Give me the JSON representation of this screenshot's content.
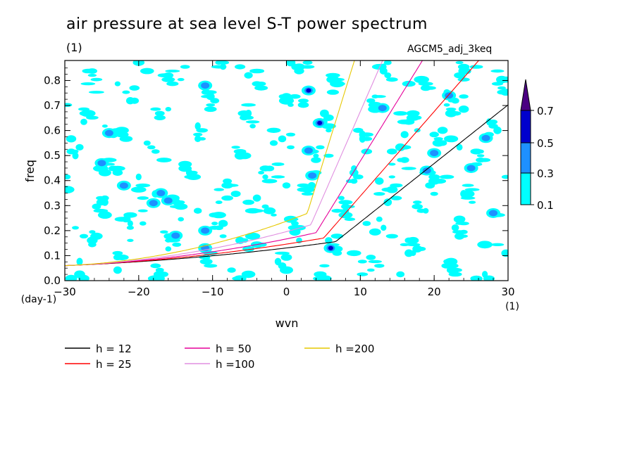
{
  "chart_data": {
    "type": "heatmap",
    "title": "air pressure at sea level S-T power spectrum",
    "subtitle": "(1)",
    "experiment": "AGCM5_adj_3keq",
    "xlabel": "wvn",
    "xunit": "(1)",
    "ylabel": "freq",
    "yunit": "(day-1)",
    "xlim": [
      -30,
      30
    ],
    "ylim": [
      0,
      0.88
    ],
    "xticks": [
      "−30",
      "−20",
      "−10",
      "0",
      "10",
      "20",
      "30"
    ],
    "xtick_values": [
      -30,
      -20,
      -10,
      0,
      10,
      20,
      30
    ],
    "yticks": [
      "0.0",
      "0.1",
      "0.2",
      "0.3",
      "0.4",
      "0.5",
      "0.6",
      "0.7",
      "0.8"
    ],
    "ytick_values": [
      0,
      0.1,
      0.2,
      0.3,
      0.4,
      0.5,
      0.6,
      0.7,
      0.8
    ],
    "colorbar": {
      "levels": [
        "0.1",
        "0.3",
        "0.5",
        "0.7"
      ],
      "level_values": [
        0.1,
        0.3,
        0.5,
        0.7
      ],
      "colors": [
        "#00ffff",
        "#1e90ff",
        "#0000cd",
        "#4b0082"
      ]
    },
    "high_spots": [
      {
        "x": 3,
        "y": 0.76,
        "level": 0.5
      },
      {
        "x": 4.5,
        "y": 0.63,
        "level": 0.5
      },
      {
        "x": 6,
        "y": 0.13,
        "level": 0.5
      },
      {
        "x": -11,
        "y": 0.78,
        "level": 0.3
      },
      {
        "x": -24,
        "y": 0.59,
        "level": 0.3
      },
      {
        "x": -25,
        "y": 0.47,
        "level": 0.3
      },
      {
        "x": -22,
        "y": 0.38,
        "level": 0.3
      },
      {
        "x": -17,
        "y": 0.35,
        "level": 0.3
      },
      {
        "x": -16,
        "y": 0.32,
        "level": 0.3
      },
      {
        "x": -18,
        "y": 0.31,
        "level": 0.3
      },
      {
        "x": -11,
        "y": 0.2,
        "level": 0.3
      },
      {
        "x": -15,
        "y": 0.18,
        "level": 0.3
      },
      {
        "x": -11,
        "y": 0.13,
        "level": 0.3
      },
      {
        "x": 3,
        "y": 0.52,
        "level": 0.3
      },
      {
        "x": 3.5,
        "y": 0.42,
        "level": 0.3
      },
      {
        "x": 22,
        "y": 0.74,
        "level": 0.3
      },
      {
        "x": 20,
        "y": 0.51,
        "level": 0.3
      },
      {
        "x": 25,
        "y": 0.45,
        "level": 0.3
      },
      {
        "x": 27,
        "y": 0.57,
        "level": 0.3
      },
      {
        "x": 13,
        "y": 0.69,
        "level": 0.3
      },
      {
        "x": 28,
        "y": 0.27,
        "level": 0.3
      },
      {
        "x": 19,
        "y": 0.44,
        "level": 0.3
      }
    ],
    "dispersion_curves": [
      {
        "label": "h = 12",
        "h": 12,
        "color": "#000000"
      },
      {
        "label": "h = 25",
        "h": 25,
        "color": "#ff0000"
      },
      {
        "label": "h = 50",
        "h": 50,
        "color": "#e6009a"
      },
      {
        "label": "h =100",
        "h": 100,
        "color": "#e08ee0"
      },
      {
        "label": "h =200",
        "h": 200,
        "color": "#e6c800"
      }
    ]
  }
}
